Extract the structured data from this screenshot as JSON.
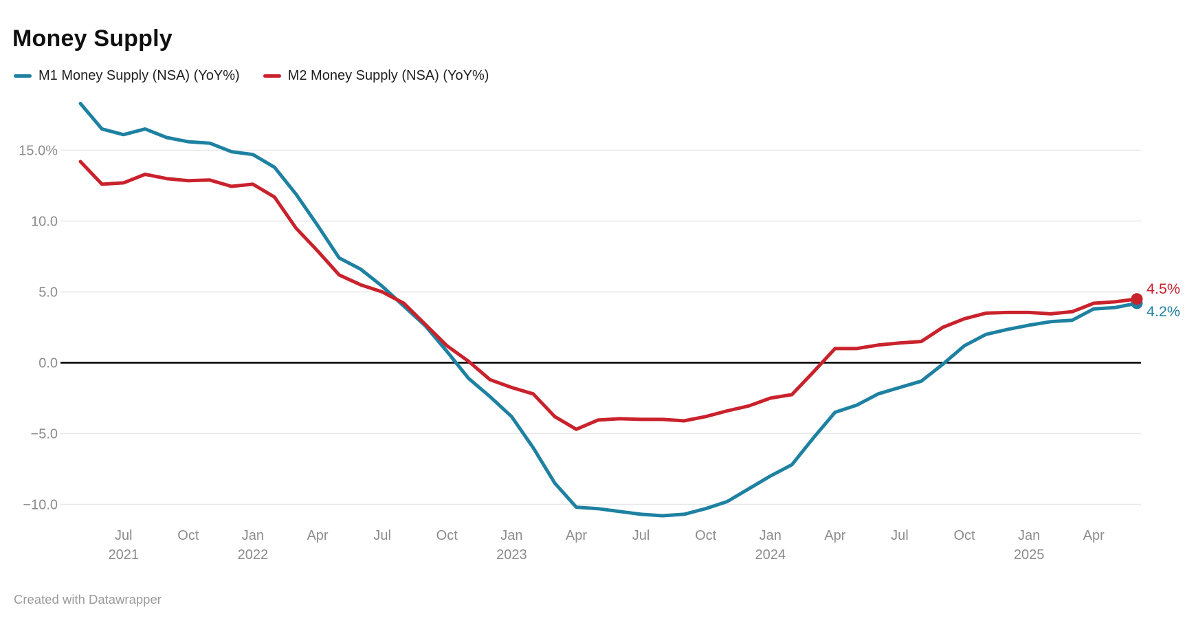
{
  "header": {
    "title": "Money Supply"
  },
  "legend": {
    "items": [
      {
        "label": "M1 Money Supply (NSA) (YoY%)",
        "color": "#1e81a2"
      },
      {
        "label": "M2 Money Supply (NSA) (YoY%)",
        "color": "#c9222c"
      }
    ]
  },
  "footer": {
    "credit": "Created with Datawrapper"
  },
  "chart_data": {
    "type": "line",
    "title": "Money Supply",
    "unit": "percent YoY",
    "grid": true,
    "zero_line": true,
    "legend_position": "top",
    "ylim": [
      -11.5,
      19.5
    ],
    "y_ticks": [
      {
        "value": 15,
        "label": "15.0%"
      },
      {
        "value": 10,
        "label": "10.0"
      },
      {
        "value": 5,
        "label": "5.0"
      },
      {
        "value": 0,
        "label": "0.0"
      },
      {
        "value": -5,
        "label": "−5.0"
      },
      {
        "value": -10,
        "label": "−10.0"
      }
    ],
    "x_ticks": [
      {
        "index": 2,
        "label": "Jul",
        "year": "2021"
      },
      {
        "index": 5,
        "label": "Oct"
      },
      {
        "index": 8,
        "label": "Jan",
        "year": "2022"
      },
      {
        "index": 11,
        "label": "Apr"
      },
      {
        "index": 14,
        "label": "Jul"
      },
      {
        "index": 17,
        "label": "Oct"
      },
      {
        "index": 20,
        "label": "Jan",
        "year": "2023"
      },
      {
        "index": 23,
        "label": "Apr"
      },
      {
        "index": 26,
        "label": "Jul"
      },
      {
        "index": 29,
        "label": "Oct"
      },
      {
        "index": 32,
        "label": "Jan",
        "year": "2024"
      },
      {
        "index": 35,
        "label": "Apr"
      },
      {
        "index": 38,
        "label": "Jul"
      },
      {
        "index": 41,
        "label": "Oct"
      },
      {
        "index": 44,
        "label": "Jan",
        "year": "2025"
      },
      {
        "index": 47,
        "label": "Apr"
      }
    ],
    "x_labels": [
      "May 2021",
      "Jun 2021",
      "Jul 2021",
      "Aug 2021",
      "Sep 2021",
      "Oct 2021",
      "Nov 2021",
      "Dec 2021",
      "Jan 2022",
      "Feb 2022",
      "Mar 2022",
      "Apr 2022",
      "May 2022",
      "Jun 2022",
      "Jul 2022",
      "Aug 2022",
      "Sep 2022",
      "Oct 2022",
      "Nov 2022",
      "Dec 2022",
      "Jan 2023",
      "Feb 2023",
      "Mar 2023",
      "Apr 2023",
      "May 2023",
      "Jun 2023",
      "Jul 2023",
      "Aug 2023",
      "Sep 2023",
      "Oct 2023",
      "Nov 2023",
      "Dec 2023",
      "Jan 2024",
      "Feb 2024",
      "Mar 2024",
      "Apr 2024",
      "May 2024",
      "Jun 2024",
      "Jul 2024",
      "Aug 2024",
      "Sep 2024",
      "Oct 2024",
      "Nov 2024",
      "Dec 2024",
      "Jan 2025",
      "Feb 2025",
      "Mar 2025",
      "Apr 2025",
      "May 2025",
      "Jun 2025"
    ],
    "series": [
      {
        "name": "M1 Money Supply (NSA) (YoY%)",
        "color": "#1e81a2",
        "end_label": "4.2%",
        "values": [
          18.3,
          16.5,
          16.1,
          16.5,
          15.9,
          15.6,
          15.5,
          14.9,
          14.7,
          13.8,
          11.9,
          9.7,
          7.4,
          6.6,
          5.4,
          4.0,
          2.6,
          0.8,
          -1.1,
          -2.4,
          -3.8,
          -6.0,
          -8.5,
          -10.2,
          -10.3,
          -10.5,
          -10.7,
          -10.8,
          -10.7,
          -10.3,
          -9.8,
          -8.9,
          -8.0,
          -7.2,
          -5.3,
          -3.5,
          -3.0,
          -2.2,
          -1.75,
          -1.3,
          -0.1,
          1.2,
          2.0,
          2.35,
          2.65,
          2.9,
          3.0,
          3.8,
          3.9,
          4.2
        ]
      },
      {
        "name": "M2 Money Supply (NSA) (YoY%)",
        "color": "#c9222c",
        "end_label": "4.5%",
        "values": [
          14.2,
          12.6,
          12.7,
          13.3,
          13.0,
          12.85,
          12.9,
          12.45,
          12.6,
          11.7,
          9.5,
          7.9,
          6.2,
          5.5,
          5.0,
          4.2,
          2.7,
          1.2,
          0.1,
          -1.2,
          -1.75,
          -2.2,
          -3.8,
          -4.7,
          -4.05,
          -3.95,
          -4.0,
          -4.0,
          -4.1,
          -3.8,
          -3.4,
          -3.05,
          -2.5,
          -2.25,
          -0.65,
          1.0,
          1.0,
          1.25,
          1.4,
          1.5,
          2.5,
          3.1,
          3.5,
          3.55,
          3.55,
          3.45,
          3.6,
          4.2,
          4.3,
          4.5
        ]
      }
    ]
  }
}
